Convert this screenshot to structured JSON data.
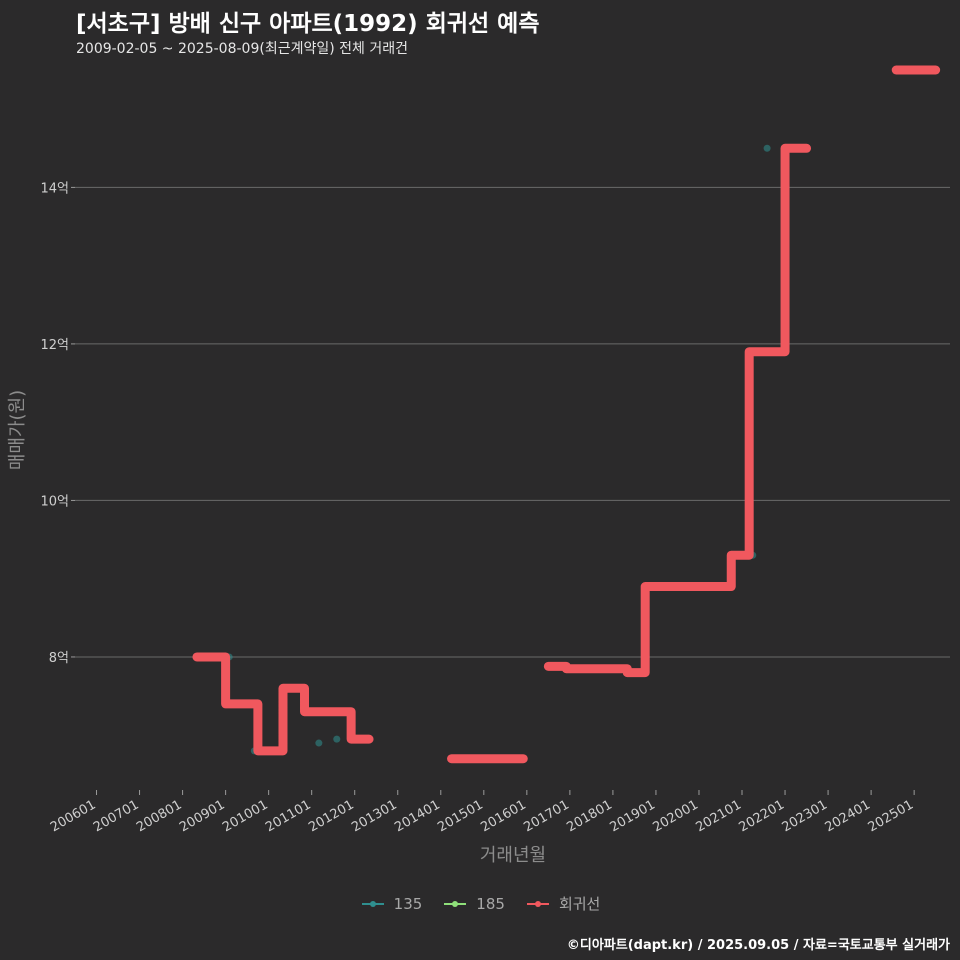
{
  "title": "[서초구] 방배 신구 아파트(1992) 회귀선 예측",
  "subtitle": "2009-02-05 ~ 2025-08-09(최근계약일) 전체 거래건",
  "caption": "©디아파트(dapt.kr) / 2025.09.05 / 자료=국토교통부 실거래가",
  "colors": {
    "background": "#2b2a2b",
    "grid": "#6a6a6a",
    "series_135": "#2f8f8f",
    "series_185": "#8fe07a",
    "regression": "#f0585e"
  },
  "legend": [
    {
      "name": "135",
      "color": "#2f8f8f"
    },
    {
      "name": "185",
      "color": "#8fe07a"
    },
    {
      "name": "회귀선",
      "color": "#f0585e"
    }
  ],
  "chart_data": {
    "type": "line",
    "title": "[서초구] 방배 신구 아파트(1992) 회귀선 예측",
    "subtitle": "2009-02-05 ~ 2025-08-09(최근계약일) 전체 거래건",
    "xlabel": "거래년월",
    "ylabel": "매매가(원)",
    "x_ticks": [
      "200601",
      "200701",
      "200801",
      "200901",
      "201001",
      "201101",
      "201201",
      "201301",
      "201401",
      "201501",
      "201601",
      "201701",
      "201801",
      "201901",
      "202001",
      "202101",
      "202201",
      "202301",
      "202401",
      "202501"
    ],
    "y_ticks": [
      {
        "value": 8,
        "label": "8억"
      },
      {
        "value": 10,
        "label": "10억"
      },
      {
        "value": 12,
        "label": "12억"
      },
      {
        "value": 14,
        "label": "14억"
      }
    ],
    "ylim": [
      6.3,
      15.5
    ],
    "xlim": [
      "2005-07",
      "2025-11"
    ],
    "grid": "horizontal",
    "legend_position": "bottom",
    "series": [
      {
        "name": "135",
        "kind": "scatter",
        "points": [
          {
            "x": "2009-02",
            "y": 8.0
          },
          {
            "x": "2009-09",
            "y": 6.8
          },
          {
            "x": "2011-03",
            "y": 6.9
          },
          {
            "x": "2011-08",
            "y": 6.95
          },
          {
            "x": "2021-04",
            "y": 9.3
          },
          {
            "x": "2021-08",
            "y": 14.5
          }
        ]
      },
      {
        "name": "185",
        "kind": "scatter",
        "points": []
      },
      {
        "name": "회귀선",
        "kind": "step",
        "segments": [
          {
            "x0": "2008-05",
            "x1": "2009-01",
            "y": 8.0
          },
          {
            "x0": "2009-01",
            "x1": "2009-10",
            "y": 7.4
          },
          {
            "x0": "2009-10",
            "x1": "2010-05",
            "y": 6.8
          },
          {
            "x0": "2010-05",
            "x1": "2010-11",
            "y": 7.6
          },
          {
            "x0": "2010-11",
            "x1": "2011-12",
            "y": 7.3
          },
          {
            "x0": "2011-12",
            "x1": "2012-05",
            "y": 6.95
          },
          {
            "x0": "2014-04",
            "x1": "2015-12",
            "y": 6.7
          },
          {
            "x0": "2016-07",
            "x1": "2016-12",
            "y": 7.88
          },
          {
            "x0": "2016-12",
            "x1": "2018-05",
            "y": 7.85
          },
          {
            "x0": "2018-05",
            "x1": "2018-10",
            "y": 7.8
          },
          {
            "x0": "2018-10",
            "x1": "2020-10",
            "y": 8.9
          },
          {
            "x0": "2020-10",
            "x1": "2021-03",
            "y": 9.3
          },
          {
            "x0": "2021-03",
            "x1": "2022-01",
            "y": 11.9
          },
          {
            "x0": "2022-01",
            "x1": "2022-07",
            "y": 14.5
          },
          {
            "x0": "2024-08",
            "x1": "2025-07",
            "y": 15.5
          }
        ]
      }
    ]
  }
}
